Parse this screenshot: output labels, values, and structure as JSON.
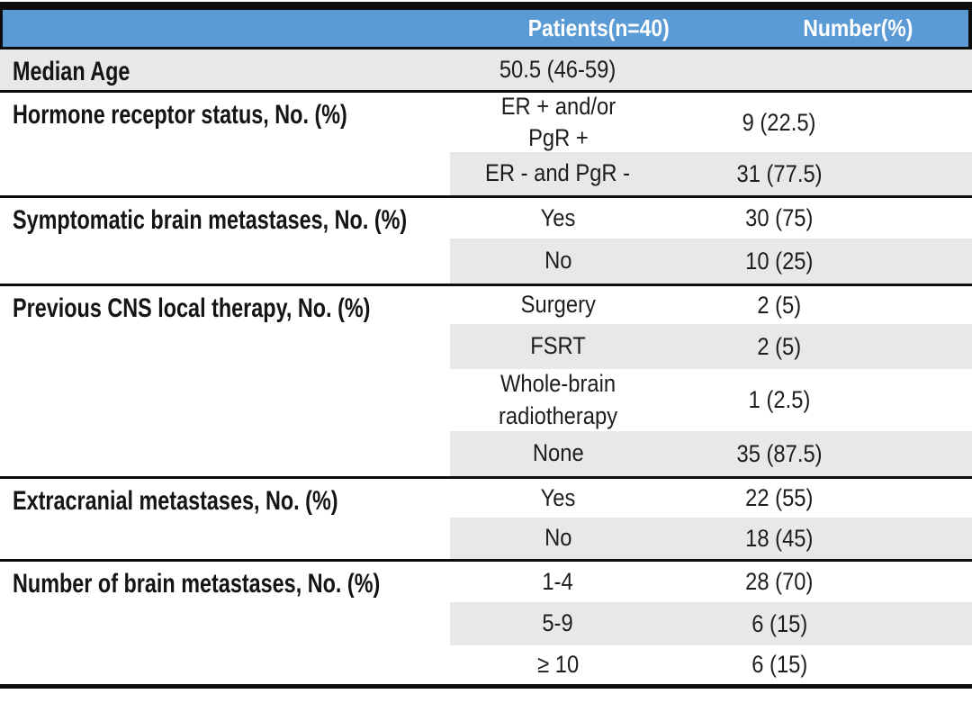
{
  "colors": {
    "header_blue": "#5B9BD5",
    "shade_gray": "#E9E8E7",
    "rule_black": "#0D0D0D",
    "header_text": "#FFFFFF",
    "body_text": "#1D1D1D"
  },
  "table": {
    "header": {
      "patients": "Patients(n=40)",
      "number": "Number(%)"
    },
    "sections": [
      {
        "label": "Median Age",
        "rows": [
          {
            "category": "50.5 (46-59)",
            "value": ""
          }
        ]
      },
      {
        "label": "Hormone receptor status, No. (%)",
        "rows": [
          {
            "category": "ER + and/or\nPgR +",
            "value": "9 (22.5)"
          },
          {
            "category": "ER - and PgR -",
            "value": "31 (77.5)"
          }
        ]
      },
      {
        "label": "Symptomatic brain metastases, No. (%)",
        "rows": [
          {
            "category": "Yes",
            "value": "30 (75)"
          },
          {
            "category": "No",
            "value": "10 (25)"
          }
        ]
      },
      {
        "label": "Previous CNS local therapy, No. (%)",
        "rows": [
          {
            "category": "Surgery",
            "value": "2 (5)"
          },
          {
            "category": "FSRT",
            "value": "2 (5)"
          },
          {
            "category": "Whole-brain\nradiotherapy",
            "value": "1 (2.5)"
          },
          {
            "category": "None",
            "value": "35 (87.5)"
          }
        ]
      },
      {
        "label": "Extracranial metastases, No. (%)",
        "rows": [
          {
            "category": "Yes",
            "value": "22 (55)"
          },
          {
            "category": "No",
            "value": "18 (45)"
          }
        ]
      },
      {
        "label": "Number of brain metastases, No. (%)",
        "rows": [
          {
            "category": "1-4",
            "value": "28 (70)"
          },
          {
            "category": "5-9",
            "value": "6 (15)"
          },
          {
            "category": "≥ 10",
            "value": "6 (15)"
          }
        ]
      }
    ]
  }
}
